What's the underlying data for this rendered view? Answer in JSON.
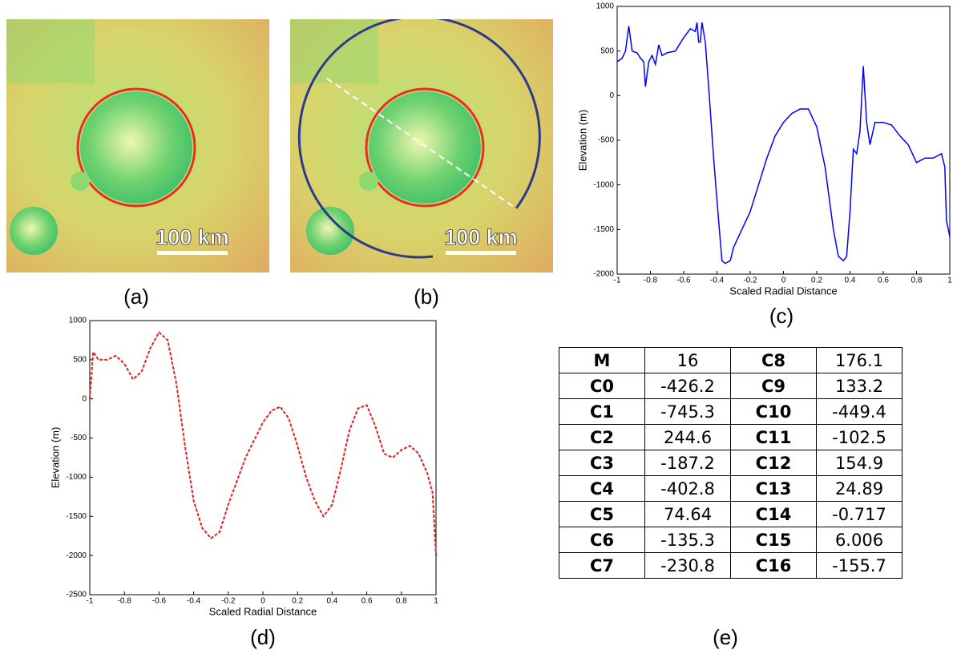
{
  "chart_data": [
    {
      "type": "line",
      "xlabel": "Scaled Radial Distance",
      "ylabel": "Elevation (m)",
      "color": "#0000ff",
      "line_style": "solid",
      "x": [
        -1,
        -0.97,
        -0.95,
        -0.93,
        -0.91,
        -0.88,
        -0.86,
        -0.84,
        -0.83,
        -0.81,
        -0.79,
        -0.77,
        -0.75,
        -0.73,
        -0.7,
        -0.65,
        -0.6,
        -0.56,
        -0.53,
        -0.52,
        -0.51,
        -0.5,
        -0.49,
        -0.47,
        -0.45,
        -0.42,
        -0.39,
        -0.37,
        -0.35,
        -0.32,
        -0.3,
        -0.25,
        -0.2,
        -0.15,
        -0.1,
        -0.05,
        0,
        0.05,
        0.1,
        0.15,
        0.2,
        0.25,
        0.3,
        0.33,
        0.36,
        0.38,
        0.4,
        0.42,
        0.44,
        0.46,
        0.48,
        0.5,
        0.52,
        0.55,
        0.6,
        0.65,
        0.7,
        0.75,
        0.8,
        0.85,
        0.9,
        0.95,
        0.97,
        0.98,
        1
      ],
      "values": [
        380,
        420,
        500,
        780,
        500,
        480,
        420,
        380,
        100,
        380,
        450,
        350,
        570,
        450,
        480,
        500,
        650,
        750,
        720,
        820,
        600,
        600,
        820,
        600,
        100,
        -700,
        -1400,
        -1850,
        -1880,
        -1850,
        -1700,
        -1500,
        -1300,
        -1000,
        -700,
        -450,
        -300,
        -200,
        -150,
        -150,
        -350,
        -800,
        -1500,
        -1800,
        -1850,
        -1800,
        -1300,
        -600,
        -650,
        -400,
        330,
        -300,
        -550,
        -300,
        -300,
        -330,
        -450,
        -550,
        -750,
        -700,
        -700,
        -650,
        -800,
        -1400,
        -1580
      ],
      "xlim": [
        -1,
        1
      ],
      "xticks": [
        -1,
        -0.8,
        -0.6,
        -0.4,
        -0.2,
        0,
        0.2,
        0.4,
        0.6,
        0.8,
        1
      ],
      "ylim": [
        -2000,
        1000
      ],
      "yticks": [
        -2000,
        -1500,
        -1000,
        -500,
        0,
        500,
        1000
      ]
    },
    {
      "type": "line",
      "xlabel": "Scaled Radial Distance",
      "ylabel": "Elevation (m)",
      "color": "#e02020",
      "line_style": "dashed",
      "x": [
        -1,
        -0.98,
        -0.95,
        -0.9,
        -0.85,
        -0.8,
        -0.75,
        -0.7,
        -0.65,
        -0.6,
        -0.55,
        -0.5,
        -0.45,
        -0.4,
        -0.35,
        -0.3,
        -0.25,
        -0.2,
        -0.1,
        0,
        0.05,
        0.1,
        0.15,
        0.2,
        0.25,
        0.3,
        0.35,
        0.4,
        0.45,
        0.5,
        0.55,
        0.6,
        0.65,
        0.7,
        0.75,
        0.8,
        0.85,
        0.9,
        0.95,
        0.98,
        1
      ],
      "values": [
        0,
        600,
        500,
        500,
        550,
        450,
        250,
        350,
        650,
        850,
        750,
        200,
        -600,
        -1300,
        -1650,
        -1780,
        -1700,
        -1350,
        -750,
        -300,
        -150,
        -100,
        -250,
        -600,
        -1000,
        -1300,
        -1500,
        -1350,
        -900,
        -400,
        -120,
        -80,
        -350,
        -700,
        -750,
        -650,
        -600,
        -700,
        -950,
        -1200,
        -2000
      ],
      "xlim": [
        -1,
        1
      ],
      "xticks": [
        -1,
        -0.8,
        -0.6,
        -0.4,
        -0.2,
        0,
        0.2,
        0.4,
        0.6,
        0.8,
        1
      ],
      "ylim": [
        -2500,
        1000
      ],
      "yticks": [
        -2500,
        -2000,
        -1500,
        -1000,
        -500,
        0,
        500,
        1000
      ]
    }
  ],
  "images": [
    {
      "scale_label": "100 km"
    },
    {
      "scale_label": "100 km"
    }
  ],
  "captions": [
    "(a)",
    "(b)",
    "(c)",
    "(d)",
    "(e)"
  ],
  "table": {
    "rows": [
      [
        "M",
        "16",
        "C8",
        "176.1"
      ],
      [
        "C0",
        "-426.2",
        "C9",
        "133.2"
      ],
      [
        "C1",
        "-745.3",
        "C10",
        "-449.4"
      ],
      [
        "C2",
        "244.6",
        "C11",
        "-102.5"
      ],
      [
        "C3",
        "-187.2",
        "C12",
        "154.9"
      ],
      [
        "C4",
        "-402.8",
        "C13",
        "24.89"
      ],
      [
        "C5",
        "74.64",
        "C14",
        "-0.717"
      ],
      [
        "C6",
        "-135.3",
        "C15",
        "6.006"
      ],
      [
        "C7",
        "-230.8",
        "C16",
        "-155.7"
      ]
    ]
  }
}
